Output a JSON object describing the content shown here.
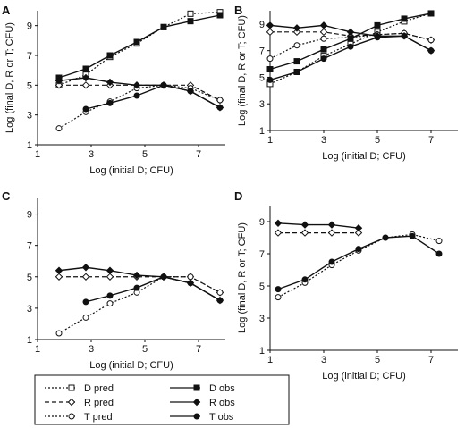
{
  "chart_data": [
    {
      "type": "line",
      "panel": "A",
      "xlabel": "Log (initial D; CFU)",
      "ylabel": "Log (final D, R or T; CFU)",
      "xlim": [
        1,
        8
      ],
      "ylim": [
        1,
        10
      ],
      "xticks": [
        1,
        3,
        5,
        7
      ],
      "yticks": [
        1,
        3,
        5,
        7,
        9
      ],
      "series": [
        {
          "name": "D pred",
          "x": [
            1.8,
            2.8,
            3.7,
            4.7,
            5.7,
            6.7,
            7.8
          ],
          "y": [
            5.0,
            5.7,
            6.9,
            7.8,
            8.9,
            9.8,
            9.9
          ]
        },
        {
          "name": "R pred",
          "x": [
            1.8,
            2.8,
            3.7,
            4.7,
            5.7,
            6.7,
            7.8
          ],
          "y": [
            5.0,
            5.0,
            5.0,
            5.0,
            5.0,
            5.0,
            4.0
          ]
        },
        {
          "name": "T pred",
          "x": [
            1.8,
            2.8,
            3.7,
            4.7,
            5.7,
            6.7,
            7.8
          ],
          "y": [
            2.1,
            3.2,
            3.9,
            4.8,
            5.0,
            4.8,
            4.0
          ]
        },
        {
          "name": "D obs",
          "x": [
            1.8,
            2.8,
            3.7,
            4.7,
            5.7,
            6.7,
            7.8
          ],
          "y": [
            5.5,
            6.1,
            7.0,
            7.9,
            8.9,
            9.3,
            9.7
          ]
        },
        {
          "name": "R obs",
          "x": [
            1.8,
            2.8,
            3.7,
            4.7,
            5.7,
            6.7,
            7.8
          ],
          "y": [
            5.3,
            5.5,
            5.2,
            5.0,
            5.0,
            4.6,
            3.5
          ]
        },
        {
          "name": "T obs",
          "x": [
            2.8,
            3.7,
            4.7,
            5.7,
            6.7,
            7.8
          ],
          "y": [
            3.4,
            3.8,
            4.3,
            5.0,
            4.6,
            3.5
          ]
        }
      ]
    },
    {
      "type": "line",
      "panel": "B",
      "xlabel": "Log (initial D; CFU)",
      "ylabel": "Log (final D, R or T; CFU)",
      "xlim": [
        1,
        8
      ],
      "ylim": [
        1,
        10
      ],
      "xticks": [
        1,
        3,
        5,
        7
      ],
      "yticks": [
        1,
        3,
        5,
        7,
        9
      ],
      "series": [
        {
          "name": "D pred",
          "x": [
            1,
            2,
            3,
            4,
            5,
            6,
            7
          ],
          "y": [
            4.5,
            5.4,
            6.6,
            7.5,
            8.4,
            9.2,
            9.8
          ]
        },
        {
          "name": "R pred",
          "x": [
            1,
            2,
            3,
            4,
            5,
            6,
            7
          ],
          "y": [
            8.4,
            8.4,
            8.4,
            8.1,
            8.2,
            8.3,
            7.8
          ]
        },
        {
          "name": "T pred",
          "x": [
            1,
            2,
            3,
            4,
            5,
            6,
            7
          ],
          "y": [
            6.4,
            7.4,
            7.9,
            8.0,
            8.2,
            8.3,
            7.8
          ]
        },
        {
          "name": "D obs",
          "x": [
            1,
            2,
            3,
            4,
            5,
            6,
            7
          ],
          "y": [
            5.6,
            6.2,
            7.1,
            7.9,
            8.9,
            9.4,
            9.8
          ]
        },
        {
          "name": "R obs",
          "x": [
            1,
            2,
            3,
            4,
            5,
            6,
            7
          ],
          "y": [
            8.9,
            8.7,
            8.9,
            8.4,
            8.1,
            8.1,
            7.0
          ]
        },
        {
          "name": "T obs",
          "x": [
            1,
            2,
            3,
            4,
            5,
            6,
            7
          ],
          "y": [
            4.8,
            5.4,
            6.4,
            7.3,
            8.0,
            8.1,
            7.0
          ]
        }
      ]
    },
    {
      "type": "line",
      "panel": "C",
      "xlabel": "Log (initial D; CFU)",
      "ylabel": "",
      "xlim": [
        1,
        8
      ],
      "ylim": [
        1,
        10
      ],
      "xticks": [
        1,
        3,
        5,
        7
      ],
      "yticks": [
        1,
        3,
        5,
        7,
        9
      ],
      "series": [
        {
          "name": "R pred",
          "x": [
            1.8,
            2.8,
            3.7,
            4.7,
            5.7,
            6.7,
            7.8
          ],
          "y": [
            5.0,
            5.0,
            5.0,
            5.0,
            5.0,
            5.0,
            4.0
          ]
        },
        {
          "name": "T pred",
          "x": [
            1.8,
            2.8,
            3.7,
            4.7,
            5.7,
            6.7,
            7.8
          ],
          "y": [
            1.4,
            2.4,
            3.3,
            4.0,
            5.0,
            5.0,
            4.0
          ]
        },
        {
          "name": "R obs",
          "x": [
            1.8,
            2.8,
            3.7,
            4.7,
            5.7,
            6.7,
            7.8
          ],
          "y": [
            5.4,
            5.6,
            5.4,
            5.1,
            5.0,
            4.6,
            3.5
          ]
        },
        {
          "name": "T obs",
          "x": [
            2.8,
            3.7,
            4.7,
            5.7,
            6.7,
            7.8
          ],
          "y": [
            3.4,
            3.8,
            4.3,
            5.0,
            4.6,
            3.5
          ]
        }
      ]
    },
    {
      "type": "line",
      "panel": "D",
      "xlabel": "Log (initial D; CFU)",
      "ylabel": "Log (final D, R or T; CFU)",
      "xlim": [
        1,
        8
      ],
      "ylim": [
        1,
        10
      ],
      "xticks": [
        1,
        3,
        5,
        7
      ],
      "yticks": [
        1,
        3,
        5,
        7,
        9
      ],
      "series": [
        {
          "name": "R pred",
          "x": [
            1.3,
            2.3,
            3.3,
            4.3
          ],
          "y": [
            8.3,
            8.3,
            8.3,
            8.3
          ]
        },
        {
          "name": "T pred",
          "x": [
            1.3,
            2.3,
            3.3,
            4.3,
            5.3,
            6.3,
            7.3
          ],
          "y": [
            4.3,
            5.2,
            6.3,
            7.2,
            8.0,
            8.2,
            7.8
          ]
        },
        {
          "name": "R obs",
          "x": [
            1.3,
            2.3,
            3.3,
            4.3
          ],
          "y": [
            8.9,
            8.8,
            8.8,
            8.6
          ]
        },
        {
          "name": "T obs",
          "x": [
            1.3,
            2.3,
            3.3,
            4.3,
            5.3,
            6.3,
            7.3
          ],
          "y": [
            4.8,
            5.4,
            6.5,
            7.3,
            8.0,
            8.1,
            7.0
          ]
        }
      ]
    }
  ],
  "legend": {
    "items": [
      {
        "label": "D pred",
        "series": "D pred"
      },
      {
        "label": "D obs",
        "series": "D obs"
      },
      {
        "label": "R pred",
        "series": "R pred"
      },
      {
        "label": "R obs",
        "series": "R obs"
      },
      {
        "label": "T pred",
        "series": "T pred"
      },
      {
        "label": "T obs",
        "series": "T obs"
      }
    ]
  }
}
